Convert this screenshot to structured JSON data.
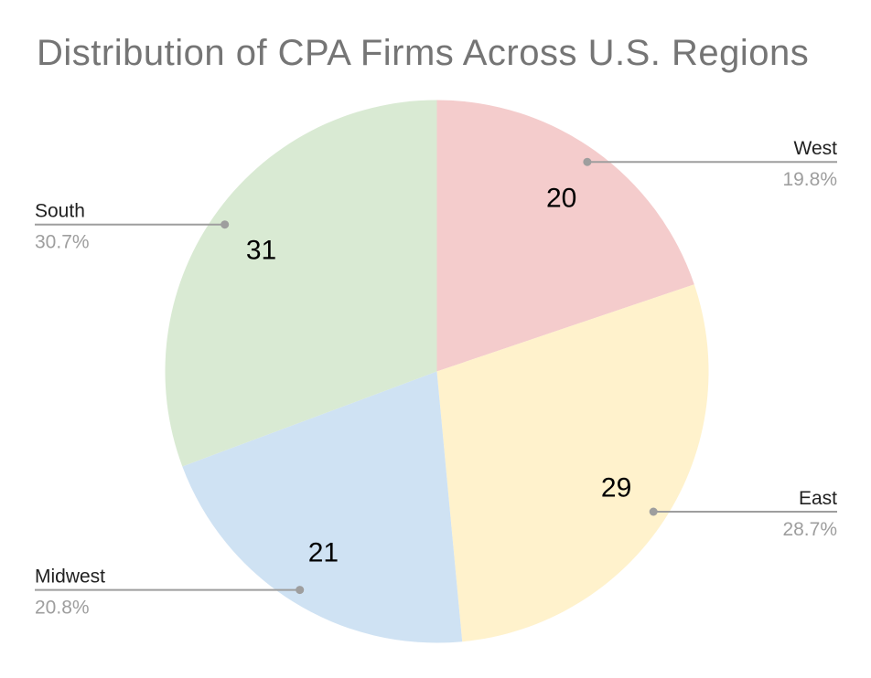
{
  "page": {
    "background": "#ffffff"
  },
  "chart_data": {
    "type": "pie",
    "title": "Distribution of CPA Firms Across U.S. Regions",
    "categories": [
      "West",
      "East",
      "Midwest",
      "South"
    ],
    "values": [
      20,
      29,
      21,
      31
    ],
    "percent_labels": [
      "19.8%",
      "28.7%",
      "20.8%",
      "30.7%"
    ],
    "colors": [
      "#f4cccc",
      "#fff2cc",
      "#cfe2f3",
      "#d9ead3"
    ],
    "start_angle_deg": 0,
    "direction": "clockwise",
    "legend_position": "outside-labels-with-leader-lines",
    "grid": "off",
    "title_color": "#757575",
    "value_label_color": "#000000",
    "category_label_color": "#212121",
    "percent_label_color": "#9e9e9e",
    "leader_line_color": "#9e9e9e",
    "background": "#ffffff"
  }
}
